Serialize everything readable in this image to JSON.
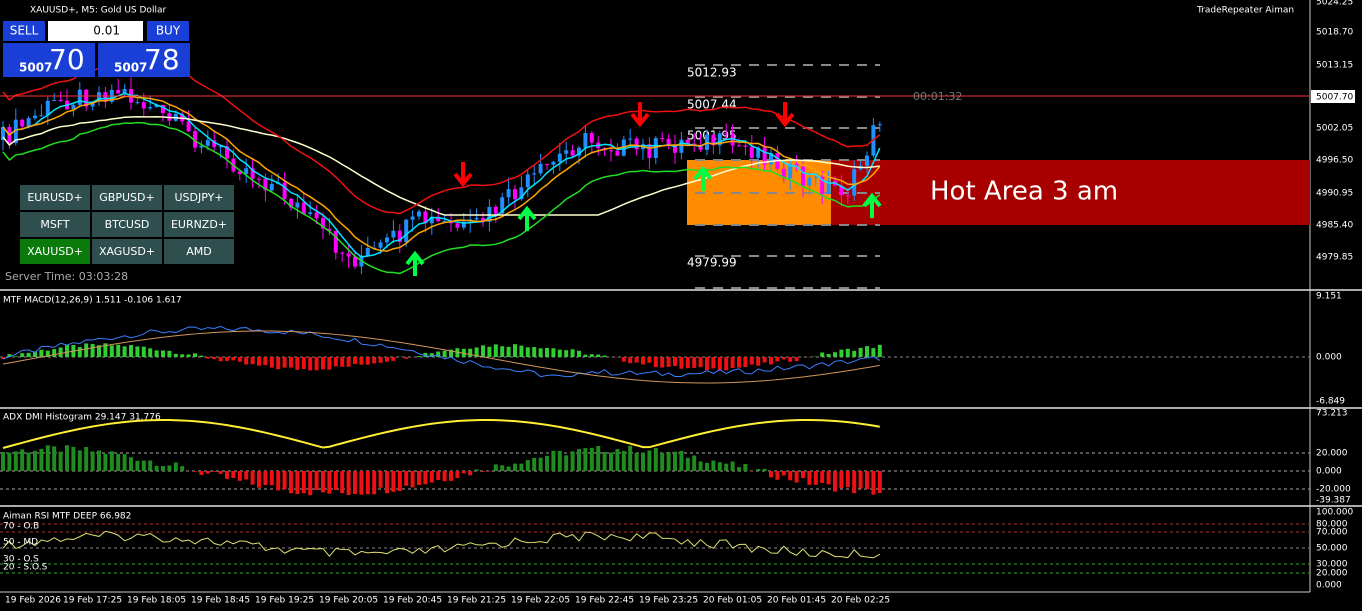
{
  "header": {
    "symbol": "XAUUSD+, M5:  Gold US Dollar",
    "account": "TradeRepeater Aiman"
  },
  "trade_panel": {
    "sell": "SELL",
    "buy": "BUY",
    "lot": "0.01",
    "bid_big": "5007",
    "bid_small": "70",
    "ask_big": "5007",
    "ask_small": "78"
  },
  "symbols": [
    "EURUSD+",
    "GBPUSD+",
    "USDJPY+",
    "MSFT",
    "BTCUSD",
    "EURNZD+",
    "XAUUSD+",
    "XAGUSD+",
    "AMD"
  ],
  "server_time": "Server Time: 03:03:28",
  "levels": [
    "5012.93",
    "5007.44",
    "5001.95",
    "4979.99"
  ],
  "countdown": "00:01:32",
  "hot_area": "Hot Area 3 am",
  "price_axis": [
    "5024.25",
    "5018.70",
    "5013.15",
    "5002.05",
    "4996.50",
    "4990.95",
    "4985.40",
    "4979.85"
  ],
  "current_price": "5007.70",
  "macd": {
    "title": "MTF MACD(12,26,9) 1.511 -0.106 1.617",
    "axis": [
      "9.151",
      "0.000",
      "-6.849"
    ]
  },
  "adx": {
    "title": "ADX DMI Histogram 29.147 31.776",
    "axis": [
      "73.213",
      "20.000",
      "0.000",
      "-20.000",
      "-39.387"
    ]
  },
  "rsi": {
    "title": "Aiman RSI MTF DEEP 66.982",
    "levels": [
      "70 - O.B",
      "50 - MD",
      "30 - O.S",
      "20 - S.O.S"
    ],
    "axis": [
      "100.000",
      "80.000",
      "70.000",
      "50.000",
      "30.000",
      "20.000",
      "0.000"
    ]
  },
  "time_axis": [
    "19 Feb 2026",
    "19 Feb 17:25",
    "19 Feb 18:05",
    "19 Feb 18:45",
    "19 Feb 19:25",
    "19 Feb 20:05",
    "19 Feb 20:45",
    "19 Feb 21:25",
    "19 Feb 22:05",
    "19 Feb 22:45",
    "19 Feb 23:25",
    "20 Feb 01:05",
    "20 Feb 01:45",
    "20 Feb 02:25"
  ]
}
